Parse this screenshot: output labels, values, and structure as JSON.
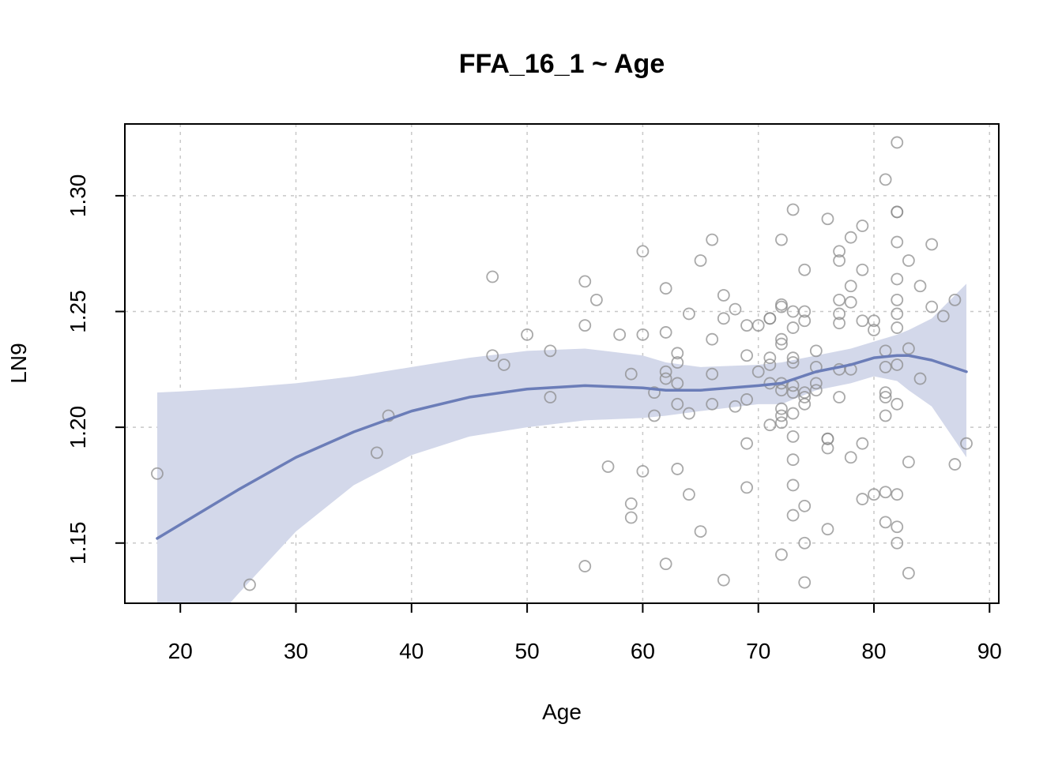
{
  "chart_data": {
    "type": "scatter",
    "title": "FFA_16_1 ~ Age",
    "xlabel": "Age",
    "ylabel": "LN9",
    "xlim": [
      15.2,
      90.8
    ],
    "ylim": [
      1.124,
      1.331
    ],
    "xticks": [
      20,
      30,
      40,
      50,
      60,
      70,
      80,
      90
    ],
    "yticks": [
      1.15,
      1.2,
      1.25,
      1.3
    ],
    "xtick_labels": [
      "20",
      "30",
      "40",
      "50",
      "60",
      "70",
      "80",
      "90"
    ],
    "ytick_labels": [
      "1.15",
      "1.20",
      "1.25",
      "1.30"
    ],
    "grid": true,
    "colors": {
      "fit": "#6b7db8",
      "band": "#d3d8ea",
      "points": "#8c8c8c"
    },
    "points": [
      [
        18,
        1.18
      ],
      [
        26,
        1.132
      ],
      [
        37,
        1.189
      ],
      [
        38,
        1.205
      ],
      [
        47,
        1.265
      ],
      [
        47,
        1.231
      ],
      [
        48,
        1.227
      ],
      [
        50,
        1.24
      ],
      [
        52,
        1.233
      ],
      [
        52,
        1.213
      ],
      [
        55,
        1.263
      ],
      [
        55,
        1.244
      ],
      [
        55,
        1.14
      ],
      [
        56,
        1.255
      ],
      [
        57,
        1.183
      ],
      [
        58,
        1.24
      ],
      [
        59,
        1.223
      ],
      [
        59,
        1.167
      ],
      [
        59,
        1.161
      ],
      [
        60,
        1.276
      ],
      [
        60,
        1.24
      ],
      [
        60,
        1.181
      ],
      [
        61,
        1.215
      ],
      [
        61,
        1.205
      ],
      [
        62,
        1.26
      ],
      [
        62,
        1.241
      ],
      [
        62,
        1.224
      ],
      [
        62,
        1.221
      ],
      [
        62,
        1.141
      ],
      [
        63,
        1.232
      ],
      [
        63,
        1.228
      ],
      [
        63,
        1.219
      ],
      [
        63,
        1.21
      ],
      [
        63,
        1.182
      ],
      [
        64,
        1.249
      ],
      [
        64,
        1.206
      ],
      [
        64,
        1.171
      ],
      [
        65,
        1.272
      ],
      [
        65,
        1.155
      ],
      [
        66,
        1.281
      ],
      [
        66,
        1.238
      ],
      [
        66,
        1.223
      ],
      [
        66,
        1.21
      ],
      [
        67,
        1.257
      ],
      [
        67,
        1.247
      ],
      [
        67,
        1.134
      ],
      [
        68,
        1.251
      ],
      [
        68,
        1.209
      ],
      [
        69,
        1.244
      ],
      [
        69,
        1.231
      ],
      [
        69,
        1.212
      ],
      [
        69,
        1.193
      ],
      [
        69,
        1.174
      ],
      [
        70,
        1.244
      ],
      [
        70,
        1.224
      ],
      [
        71,
        1.247
      ],
      [
        71,
        1.247
      ],
      [
        71,
        1.23
      ],
      [
        71,
        1.227
      ],
      [
        71,
        1.219
      ],
      [
        71,
        1.201
      ],
      [
        72,
        1.281
      ],
      [
        72,
        1.253
      ],
      [
        72,
        1.252
      ],
      [
        72,
        1.238
      ],
      [
        72,
        1.236
      ],
      [
        72,
        1.219
      ],
      [
        72,
        1.216
      ],
      [
        72,
        1.208
      ],
      [
        72,
        1.205
      ],
      [
        72,
        1.202
      ],
      [
        72,
        1.145
      ],
      [
        73,
        1.294
      ],
      [
        73,
        1.25
      ],
      [
        73,
        1.243
      ],
      [
        73,
        1.23
      ],
      [
        73,
        1.228
      ],
      [
        73,
        1.218
      ],
      [
        73,
        1.215
      ],
      [
        73,
        1.206
      ],
      [
        73,
        1.196
      ],
      [
        73,
        1.186
      ],
      [
        73,
        1.175
      ],
      [
        73,
        1.162
      ],
      [
        74,
        1.268
      ],
      [
        74,
        1.25
      ],
      [
        74,
        1.246
      ],
      [
        74,
        1.215
      ],
      [
        74,
        1.213
      ],
      [
        74,
        1.21
      ],
      [
        74,
        1.166
      ],
      [
        74,
        1.15
      ],
      [
        74,
        1.133
      ],
      [
        75,
        1.233
      ],
      [
        75,
        1.226
      ],
      [
        75,
        1.219
      ],
      [
        75,
        1.216
      ],
      [
        76,
        1.29
      ],
      [
        76,
        1.195
      ],
      [
        76,
        1.195
      ],
      [
        76,
        1.191
      ],
      [
        76,
        1.156
      ],
      [
        77,
        1.276
      ],
      [
        77,
        1.272
      ],
      [
        77,
        1.255
      ],
      [
        77,
        1.249
      ],
      [
        77,
        1.245
      ],
      [
        77,
        1.225
      ],
      [
        77,
        1.213
      ],
      [
        78,
        1.282
      ],
      [
        78,
        1.261
      ],
      [
        78,
        1.254
      ],
      [
        78,
        1.225
      ],
      [
        78,
        1.187
      ],
      [
        79,
        1.287
      ],
      [
        79,
        1.268
      ],
      [
        79,
        1.246
      ],
      [
        79,
        1.193
      ],
      [
        79,
        1.169
      ],
      [
        80,
        1.246
      ],
      [
        80,
        1.242
      ],
      [
        80,
        1.171
      ],
      [
        81,
        1.307
      ],
      [
        81,
        1.233
      ],
      [
        81,
        1.226
      ],
      [
        81,
        1.215
      ],
      [
        81,
        1.213
      ],
      [
        81,
        1.205
      ],
      [
        81,
        1.172
      ],
      [
        81,
        1.159
      ],
      [
        82,
        1.323
      ],
      [
        82,
        1.293
      ],
      [
        82,
        1.293
      ],
      [
        82,
        1.28
      ],
      [
        82,
        1.264
      ],
      [
        82,
        1.255
      ],
      [
        82,
        1.249
      ],
      [
        82,
        1.243
      ],
      [
        82,
        1.227
      ],
      [
        82,
        1.21
      ],
      [
        82,
        1.171
      ],
      [
        82,
        1.157
      ],
      [
        82,
        1.15
      ],
      [
        83,
        1.272
      ],
      [
        83,
        1.234
      ],
      [
        83,
        1.185
      ],
      [
        83,
        1.137
      ],
      [
        84,
        1.261
      ],
      [
        84,
        1.221
      ],
      [
        85,
        1.279
      ],
      [
        85,
        1.252
      ],
      [
        86,
        1.248
      ],
      [
        87,
        1.255
      ],
      [
        87,
        1.184
      ],
      [
        88,
        1.193
      ]
    ],
    "fit": {
      "x": [
        18,
        20,
        25,
        30,
        35,
        40,
        45,
        50,
        55,
        60,
        62,
        65,
        70,
        72,
        75,
        78,
        80,
        82,
        83,
        85,
        88
      ],
      "y": [
        1.152,
        1.158,
        1.173,
        1.187,
        1.198,
        1.207,
        1.213,
        1.2165,
        1.218,
        1.217,
        1.216,
        1.216,
        1.218,
        1.219,
        1.224,
        1.227,
        1.23,
        1.231,
        1.231,
        1.229,
        1.224
      ],
      "upper": [
        1.215,
        1.2155,
        1.217,
        1.219,
        1.222,
        1.226,
        1.23,
        1.233,
        1.234,
        1.231,
        1.228,
        1.226,
        1.227,
        1.228,
        1.231,
        1.234,
        1.237,
        1.24,
        1.242,
        1.247,
        1.262
      ],
      "lower": [
        1.09,
        1.1,
        1.128,
        1.155,
        1.175,
        1.188,
        1.196,
        1.2,
        1.203,
        1.204,
        1.205,
        1.207,
        1.21,
        1.21,
        1.216,
        1.219,
        1.222,
        1.22,
        1.216,
        1.209,
        1.187
      ]
    }
  }
}
